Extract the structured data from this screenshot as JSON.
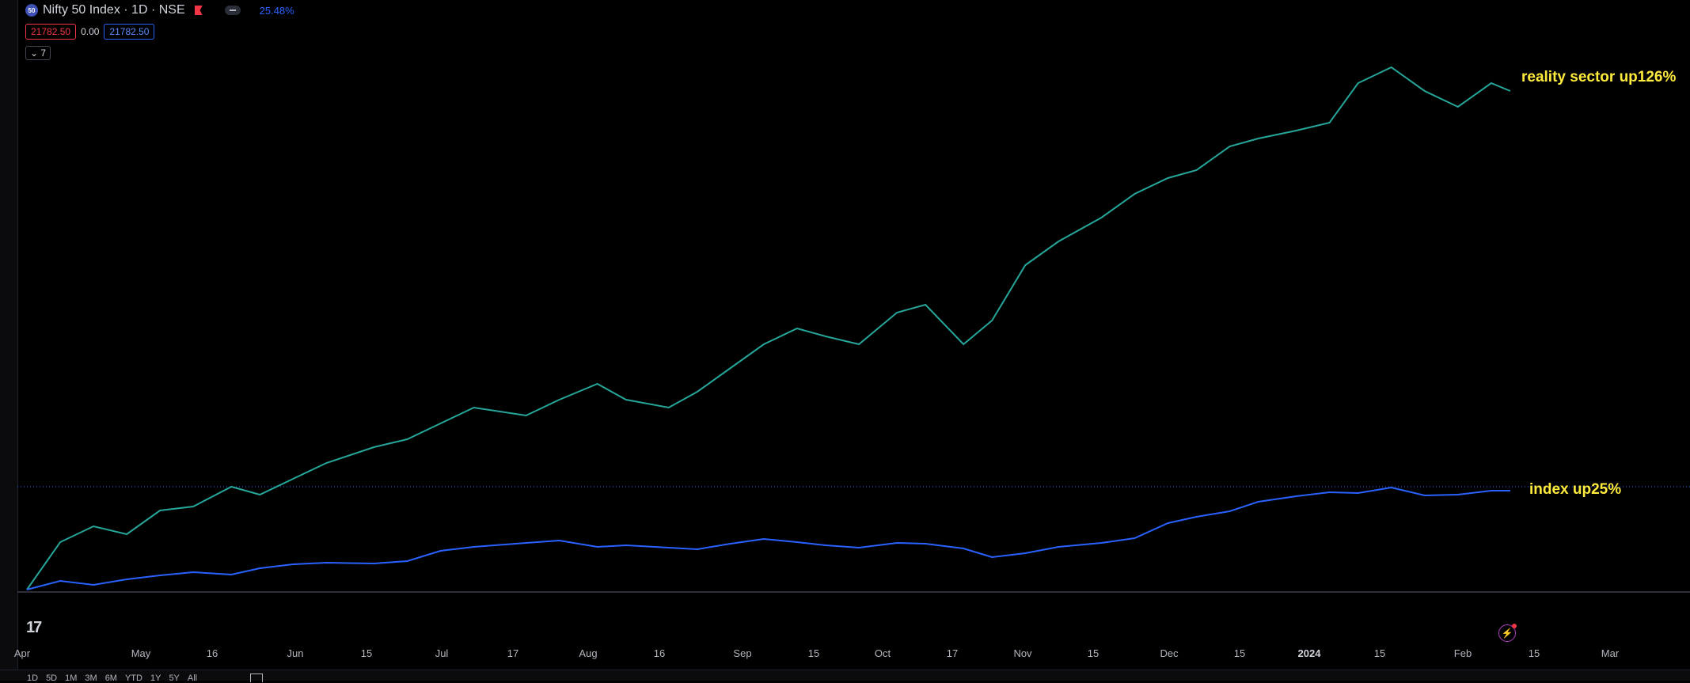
{
  "header": {
    "symbol_logo": "50",
    "title": "Nifty 50 Index · 1D · NSE",
    "percent": "25.48%",
    "price_sell": "21782.50",
    "change": "0.00",
    "price_buy": "21782.50",
    "indicator_toggle": "7"
  },
  "annotations": {
    "sector": "reality sector up126%",
    "index": "index up25%"
  },
  "x_ticks": [
    "Apr",
    "May",
    "16",
    "Jun",
    "15",
    "Jul",
    "17",
    "Aug",
    "16",
    "Sep",
    "15",
    "Oct",
    "17",
    "Nov",
    "15",
    "Dec",
    "15",
    "2024",
    "15",
    "Feb",
    "15",
    "Mar"
  ],
  "range_buttons": [
    "1D",
    "5D",
    "1M",
    "3M",
    "6M",
    "YTD",
    "1Y",
    "5Y",
    "All"
  ],
  "colors": {
    "sector_line": "#26a69a",
    "index_line": "#2962ff",
    "annotation": "#ffeb3b"
  },
  "chart_data": {
    "type": "line",
    "title": "",
    "xlabel": "",
    "ylabel": "",
    "x_range": [
      "2023-04-01",
      "2024-03-01"
    ],
    "grid": false,
    "series": [
      {
        "name": "",
        "x": [
          "2023-04-03",
          "2023-04-10",
          "2023-04-17",
          "2023-04-24",
          "2023-05-01",
          "2023-05-08",
          "2023-05-16",
          "2023-05-22",
          "2023-05-29",
          "2023-06-05",
          "2023-06-15",
          "2023-06-22",
          "2023-06-29",
          "2023-07-06",
          "2023-07-17",
          "2023-07-24",
          "2023-08-01",
          "2023-08-07",
          "2023-08-16",
          "2023-08-22",
          "2023-08-29",
          "2023-09-05",
          "2023-09-12",
          "2023-09-18",
          "2023-09-25",
          "2023-10-03",
          "2023-10-09",
          "2023-10-17",
          "2023-10-23",
          "2023-10-30",
          "2023-11-06",
          "2023-11-15",
          "2023-11-22",
          "2023-11-29",
          "2023-12-05",
          "2023-12-12",
          "2023-12-18",
          "2023-12-26",
          "2024-01-02",
          "2024-01-08",
          "2024-01-15",
          "2024-01-22",
          "2024-01-29",
          "2024-02-05",
          "2024-02-09"
        ],
        "values": [
          0,
          12,
          16,
          14,
          20,
          21,
          26,
          24,
          28,
          32,
          36,
          38,
          42,
          46,
          44,
          48,
          52,
          48,
          46,
          50,
          56,
          62,
          66,
          64,
          62,
          70,
          72,
          62,
          68,
          82,
          88,
          94,
          100,
          104,
          106,
          112,
          114,
          116,
          118,
          128,
          132,
          126,
          122,
          128,
          126
        ]
      },
      {
        "name": "",
        "x": [
          "2023-04-03",
          "2023-04-10",
          "2023-04-17",
          "2023-04-24",
          "2023-05-01",
          "2023-05-08",
          "2023-05-16",
          "2023-05-22",
          "2023-05-29",
          "2023-06-05",
          "2023-06-15",
          "2023-06-22",
          "2023-06-29",
          "2023-07-06",
          "2023-07-17",
          "2023-07-24",
          "2023-08-01",
          "2023-08-07",
          "2023-08-16",
          "2023-08-22",
          "2023-08-29",
          "2023-09-05",
          "2023-09-12",
          "2023-09-18",
          "2023-09-25",
          "2023-10-03",
          "2023-10-09",
          "2023-10-17",
          "2023-10-23",
          "2023-10-30",
          "2023-11-06",
          "2023-11-15",
          "2023-11-22",
          "2023-11-29",
          "2023-12-05",
          "2023-12-12",
          "2023-12-18",
          "2023-12-26",
          "2024-01-02",
          "2024-01-08",
          "2024-01-15",
          "2024-01-22",
          "2024-01-29",
          "2024-02-05",
          "2024-02-09"
        ],
        "values": [
          0,
          2.2,
          1.2,
          2.6,
          3.6,
          4.4,
          3.8,
          5.4,
          6.4,
          6.8,
          6.6,
          7.2,
          9.8,
          10.8,
          11.8,
          12.4,
          10.8,
          11.2,
          10.6,
          10.2,
          11.6,
          12.8,
          12.0,
          11.2,
          10.6,
          11.8,
          11.6,
          10.4,
          8.2,
          9.2,
          10.8,
          11.8,
          13.0,
          16.8,
          18.4,
          19.8,
          22.2,
          23.6,
          24.6,
          24.4,
          25.8,
          23.8,
          24.0,
          25.0,
          25.0
        ]
      }
    ]
  }
}
